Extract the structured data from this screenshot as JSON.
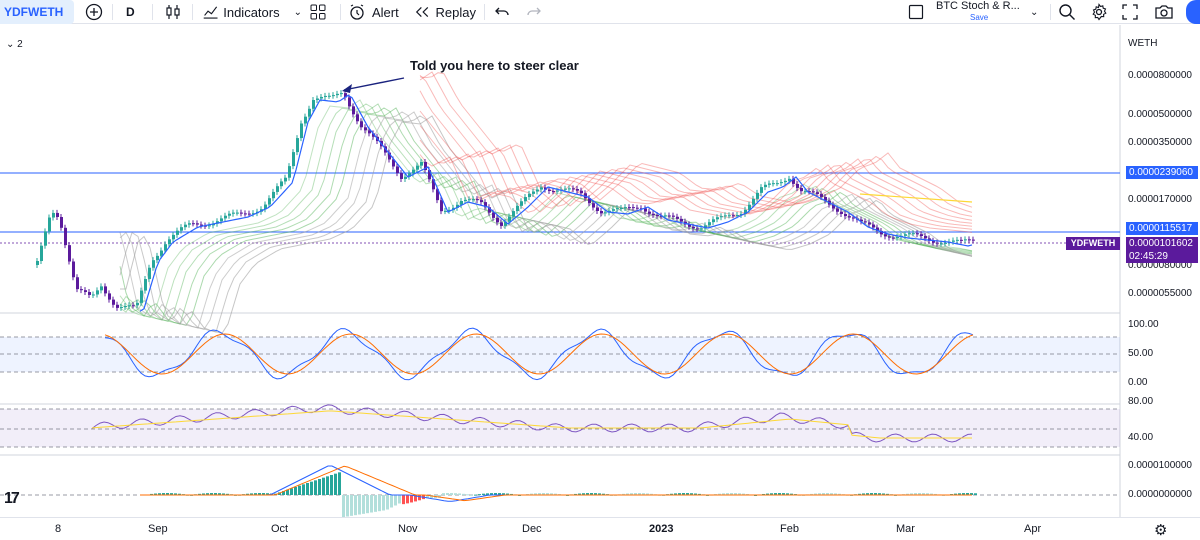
{
  "toolbar": {
    "symbol": "YDFWETH",
    "interval": "D",
    "indicators_label": "Indicators",
    "alert_label": "Alert",
    "replay_label": "Replay",
    "layout_name": "BTC Stoch & R...",
    "layout_save": "Save"
  },
  "chart": {
    "legend_collapse": "⌄ 2",
    "price_scale_title": "WETH",
    "annotation": "Told you here to steer clear",
    "price_ticks": [
      "0.0000800000",
      "0.0000500000",
      "0.0000350000",
      "0.0000170000",
      "0.0000080000",
      "0.0000055000"
    ],
    "tag_upper_line": "0.0000239060",
    "tag_lower_line": "0.0000115517",
    "tag_current": "0.0000101602",
    "tag_countdown": "02:45:29",
    "symbol_tag": "YDFWETH",
    "stoch_ticks": [
      "100.00",
      "50.00",
      "0.00"
    ],
    "rsi_ticks": [
      "80.00",
      "40.00"
    ],
    "macd_ticks": [
      "0.0000100000",
      "0.0000000000"
    ],
    "time_labels": [
      "8",
      "Sep",
      "Oct",
      "Nov",
      "Dec",
      "2023",
      "Feb",
      "Mar",
      "Apr"
    ]
  },
  "colors": {
    "bull": "#26a69a",
    "bear": "#5b1a9c",
    "line_blue": "#2962ff",
    "stoch_k": "#2962ff",
    "stoch_d": "#ff6d00",
    "rsi": "#7e57c2",
    "rsi_ma": "#fdd835"
  }
}
